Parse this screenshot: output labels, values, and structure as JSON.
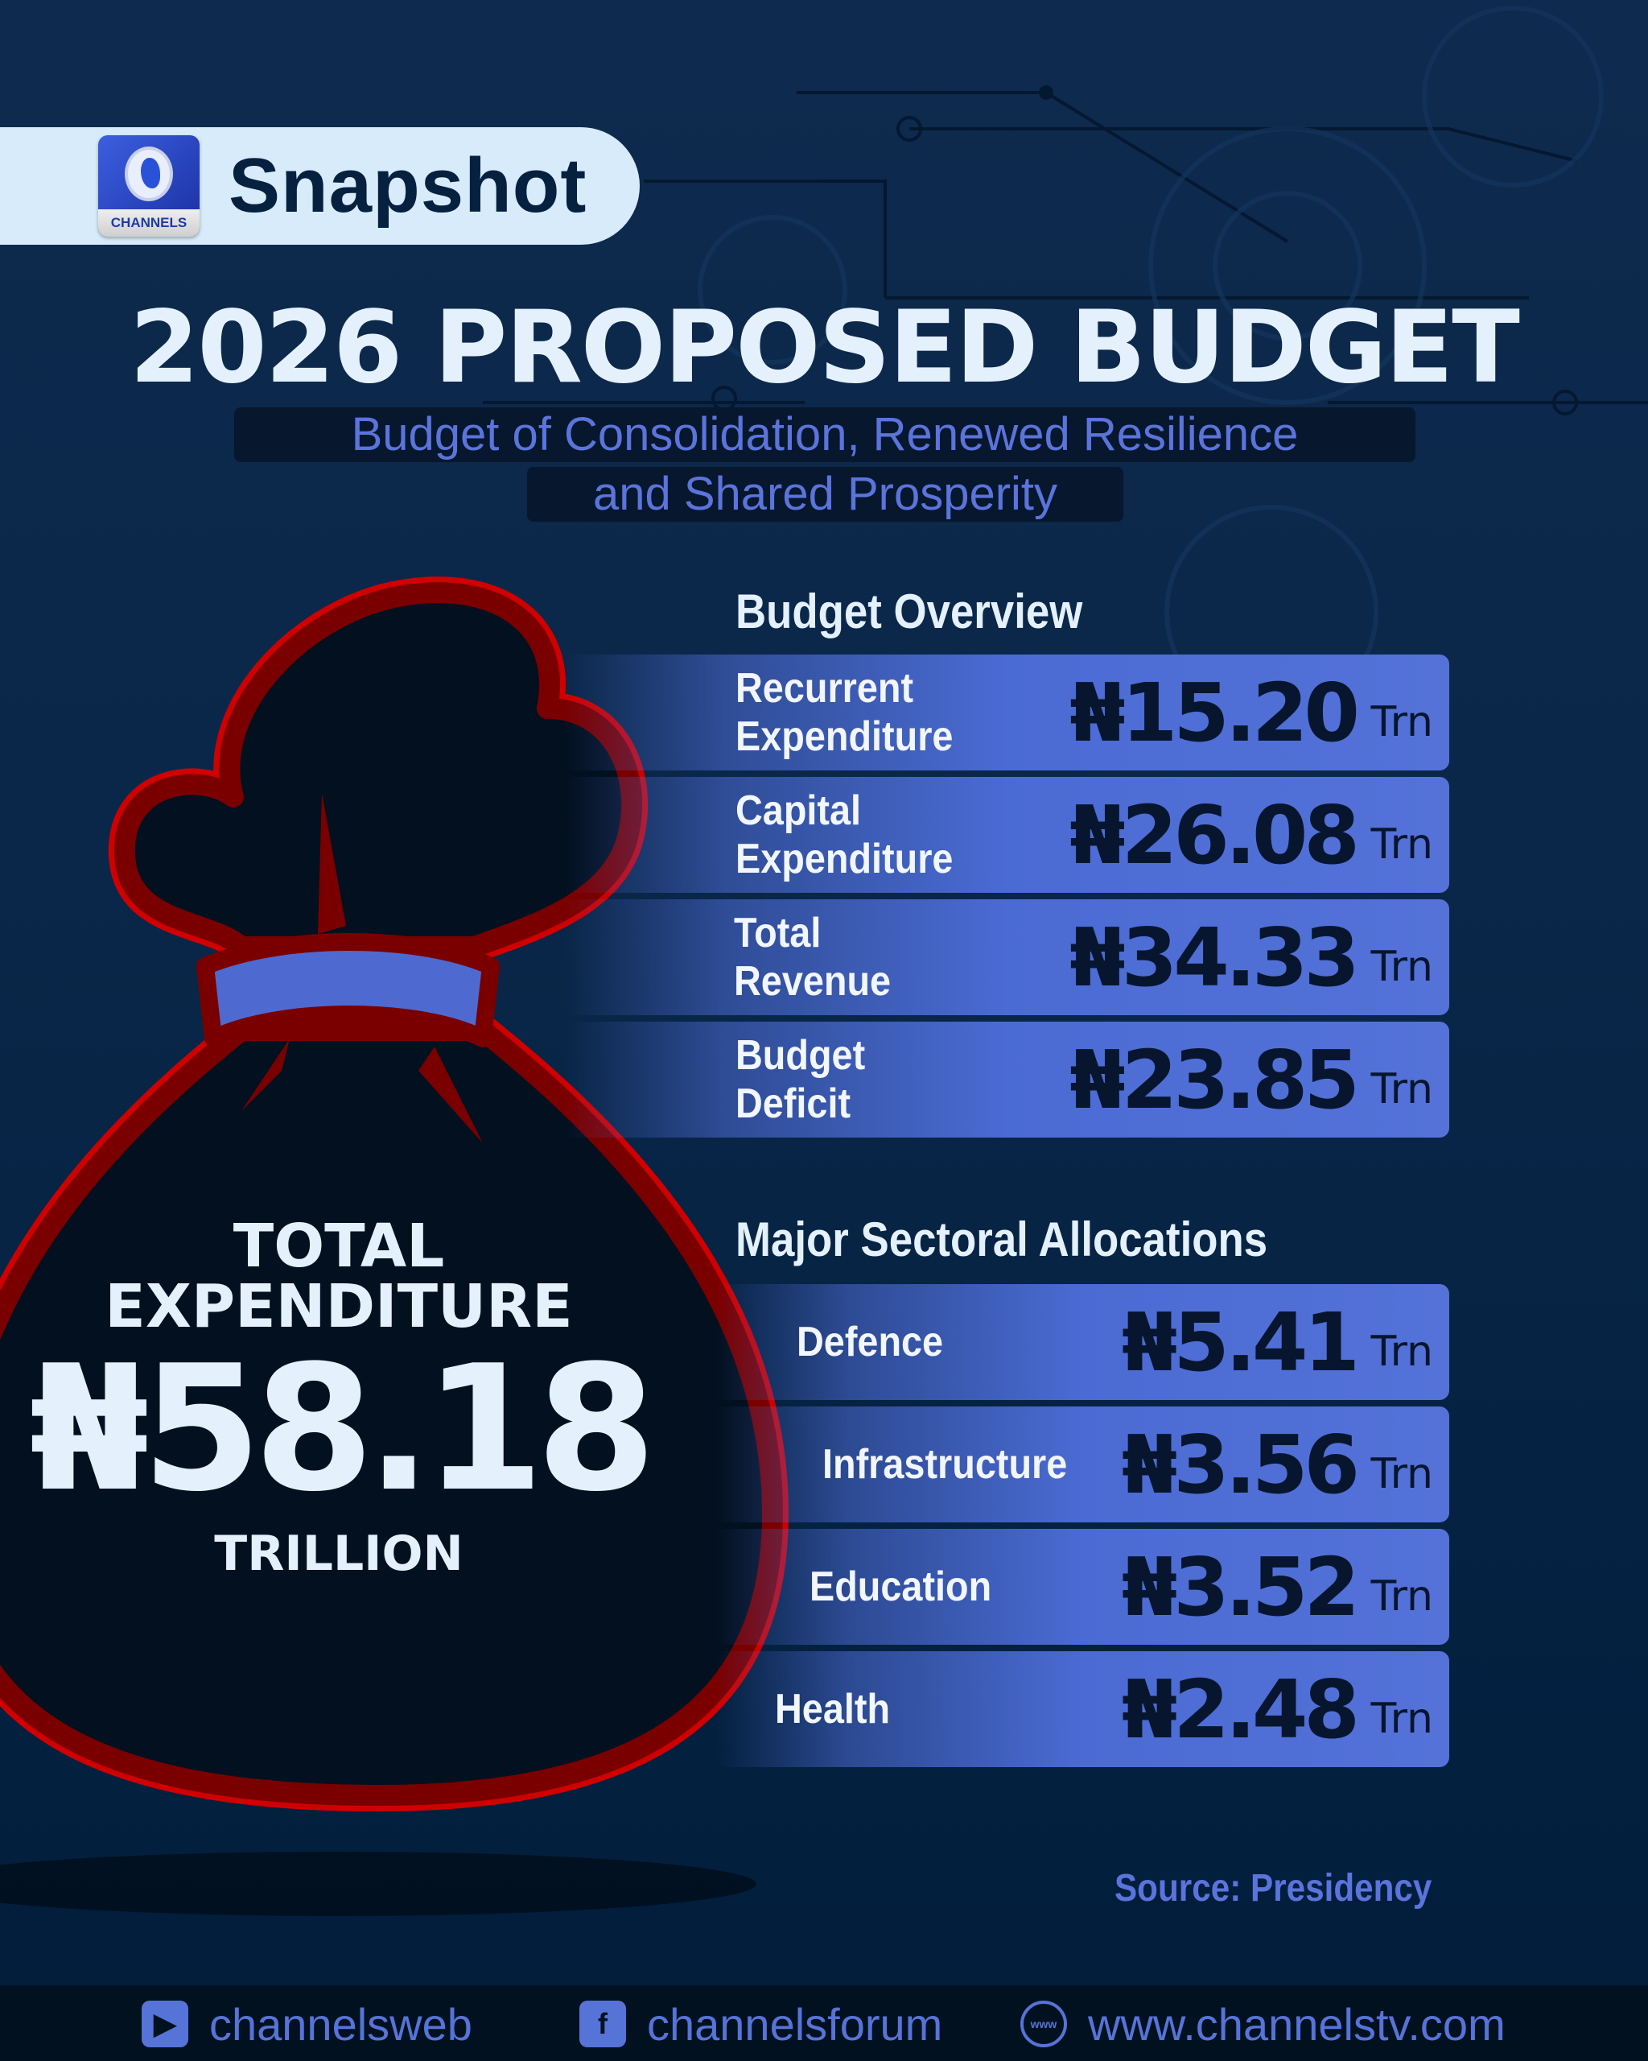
{
  "header": {
    "logo_text": "CHANNELS",
    "brand": "Snapshot"
  },
  "title": "2026 PROPOSED BUDGET",
  "subtitle": {
    "line1": "Budget of Consolidation, Renewed Resilience",
    "line2": "and Shared Prosperity"
  },
  "total": {
    "label1": "TOTAL",
    "label2": "EXPENDITURE",
    "value": "₦58.18",
    "unit": "TRILLION"
  },
  "overview": {
    "heading": "Budget Overview",
    "rows": [
      {
        "line1": "Recurrent",
        "line2": "Expenditure",
        "value": "₦15.20",
        "unit": "Trn"
      },
      {
        "line1": "Capital",
        "line2": "Expenditure",
        "value": "₦26.08",
        "unit": "Trn"
      },
      {
        "line1": "Total",
        "line2": "Revenue",
        "value": "₦34.33",
        "unit": "Trn"
      },
      {
        "line1": "Budget",
        "line2": "Deficit",
        "value": "₦23.85",
        "unit": "Trn"
      }
    ]
  },
  "sectors": {
    "heading": "Major Sectoral Allocations",
    "rows": [
      {
        "label": "Defence",
        "value": "₦5.41",
        "unit": "Trn"
      },
      {
        "label": "Infrastructure",
        "value": "₦3.56",
        "unit": "Trn"
      },
      {
        "label": "Education",
        "value": "₦3.52",
        "unit": "Trn"
      },
      {
        "label": "Health",
        "value": "₦2.48",
        "unit": "Trn"
      }
    ]
  },
  "source": "Source: Presidency",
  "footer": {
    "youtube": "channelsweb",
    "facebook": "channelsforum",
    "website": "www.channelstv.com"
  },
  "colors": {
    "accent": "#4b6bd4",
    "bag_outline": "#b00000",
    "background": "#0a2749"
  }
}
